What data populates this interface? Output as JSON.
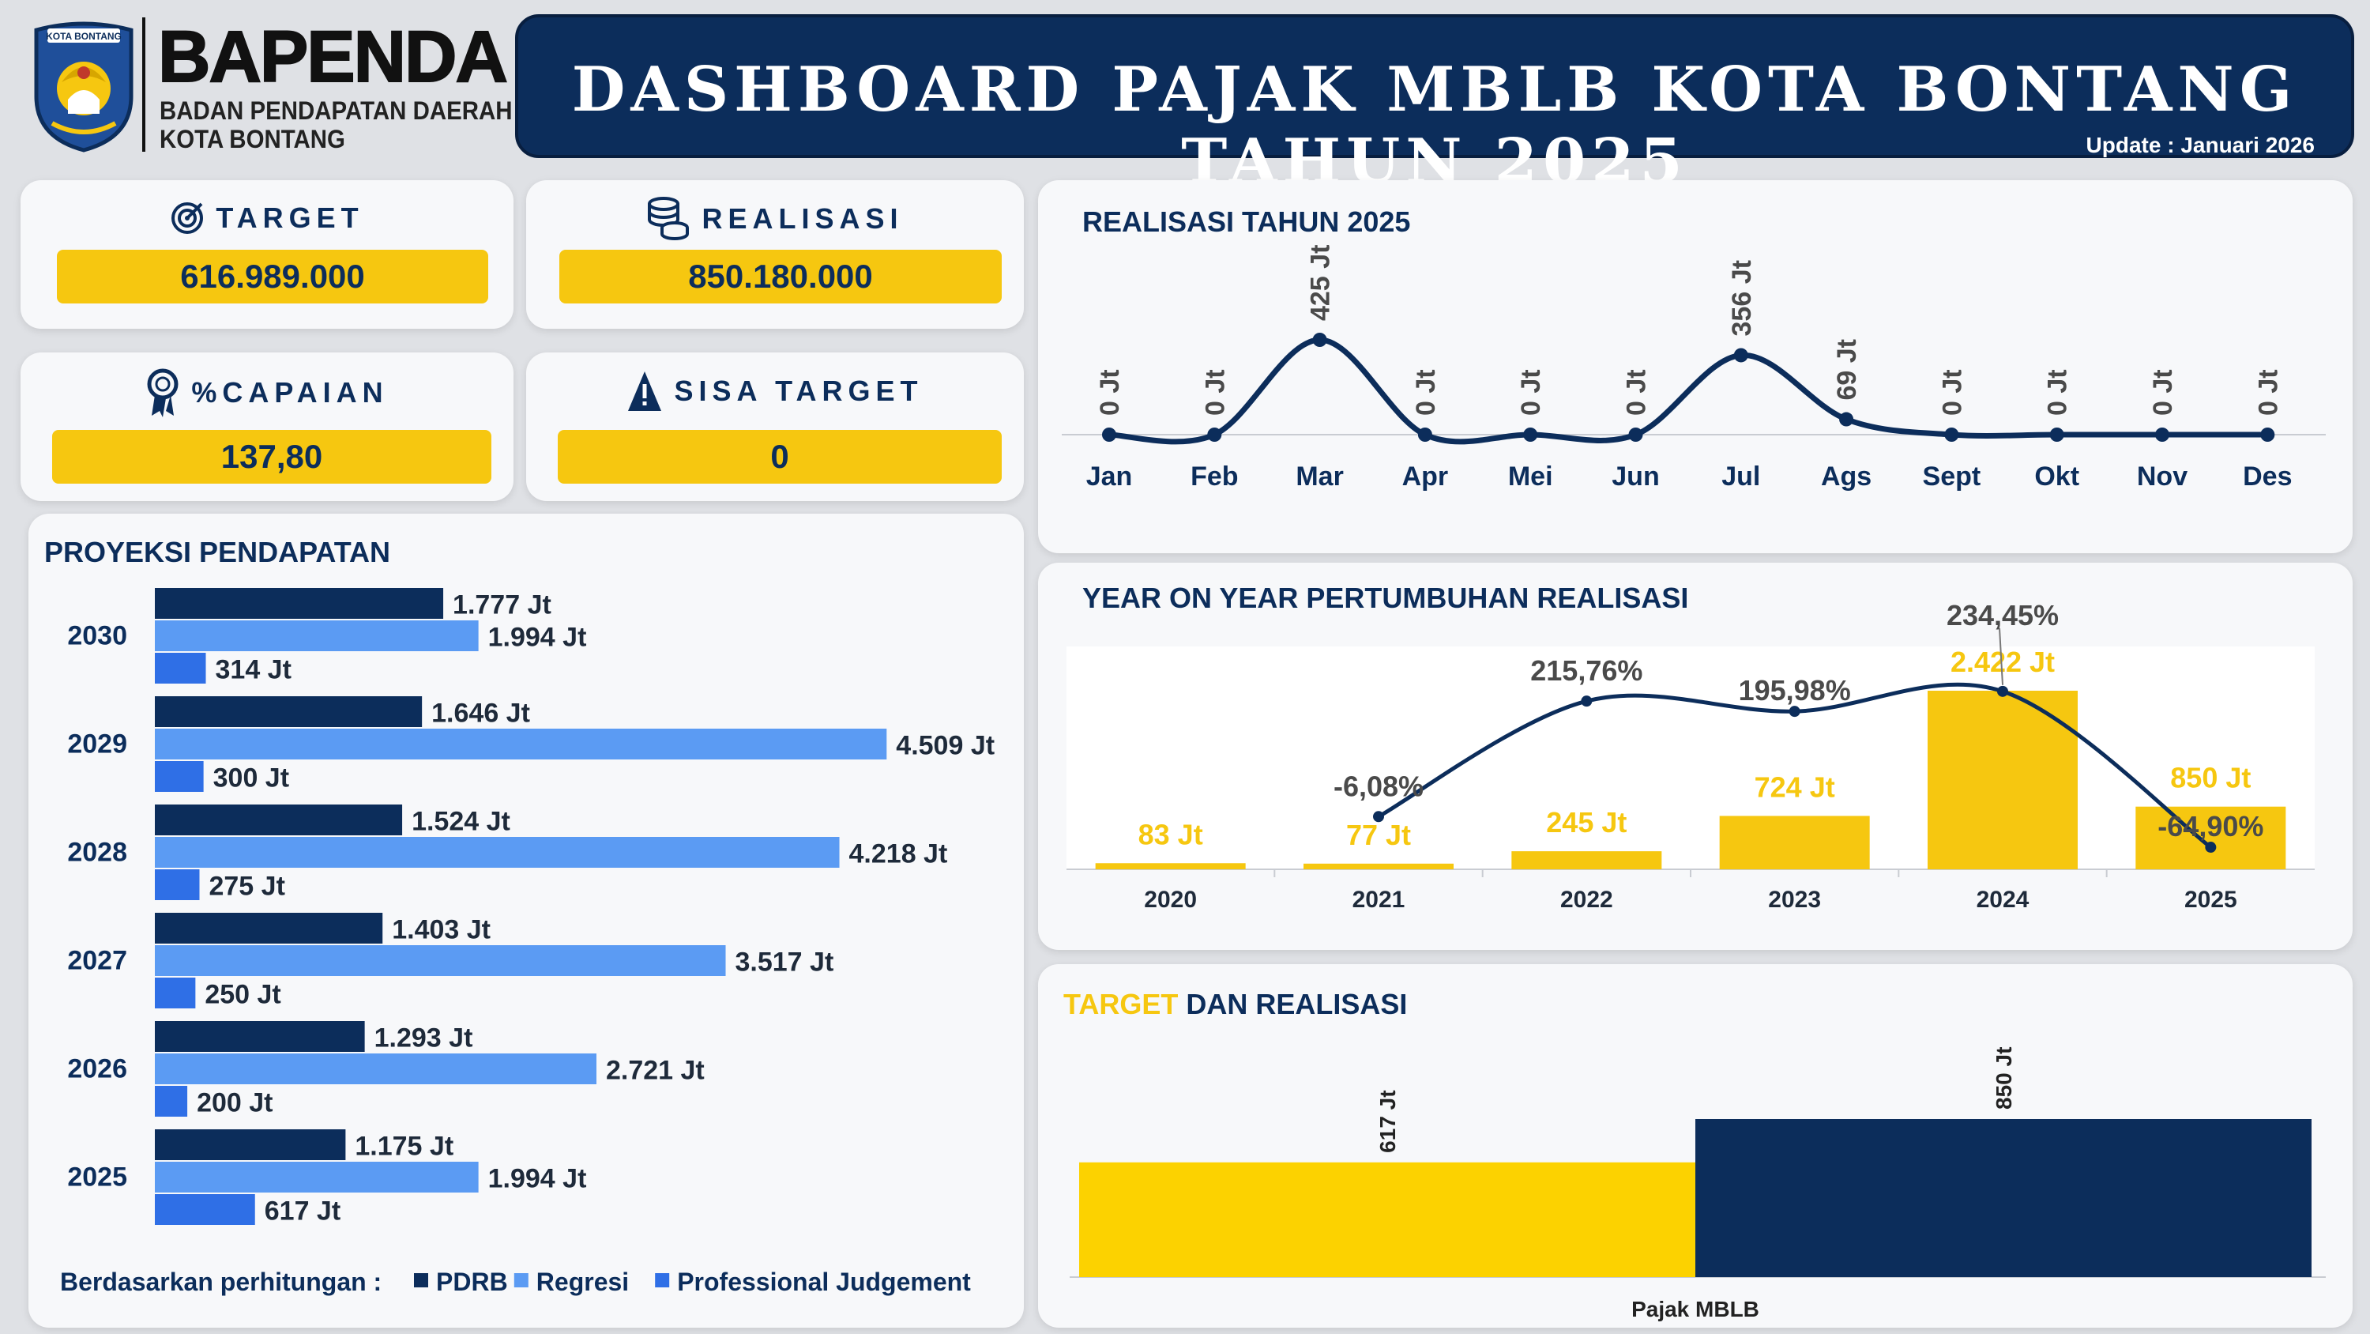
{
  "logo": {
    "emblem_text": "KOTA BONTANG",
    "name": "BAPENDA",
    "line1": "BADAN PENDAPATAN DAERAH",
    "line2": "KOTA BONTANG"
  },
  "header": {
    "title": "DASHBOARD PAJAK MBLB KOTA BONTANG TAHUN 2025",
    "update": "Update : Januari 2026"
  },
  "kpi": {
    "target": {
      "label": "TARGET",
      "value": "616.989.000",
      "icon": "target-icon"
    },
    "realisasi": {
      "label": "REALISASI",
      "value": "850.180.000",
      "icon": "coins-icon"
    },
    "capaian": {
      "label": "%CAPAIAN",
      "value": "137,80",
      "icon": "award-ribbon-icon"
    },
    "sisa": {
      "label": "SISA TARGET",
      "value": "0",
      "icon": "warning-icon"
    }
  },
  "colors": {
    "navy": "#0c2d5b",
    "yellow": "#f6c710",
    "regresi": "#5b9bf3",
    "professional": "#2f6fe6"
  },
  "chart_data": [
    {
      "id": "projection",
      "type": "bar",
      "orientation": "horizontal",
      "title": "PROYEKSI PENDAPATAN",
      "categories": [
        "2030",
        "2029",
        "2028",
        "2027",
        "2026",
        "2025"
      ],
      "series": [
        {
          "name": "PDRB",
          "values": [
            1777,
            1646,
            1524,
            1403,
            1293,
            1175
          ],
          "labels": [
            "1.777 Jt",
            "1.646 Jt",
            "1.524 Jt",
            "1.403 Jt",
            "1.293 Jt",
            "1.175 Jt"
          ]
        },
        {
          "name": "Regresi",
          "values": [
            1994,
            4509,
            4218,
            3517,
            2721,
            1994
          ],
          "labels": [
            "1.994 Jt",
            "4.509 Jt",
            "4.218 Jt",
            "3.517 Jt",
            "2.721 Jt",
            "1.994 Jt"
          ]
        },
        {
          "name": "Professional Judgement",
          "values": [
            314,
            300,
            275,
            250,
            200,
            617
          ],
          "labels": [
            "314 Jt",
            "300 Jt",
            "275 Jt",
            "250 Jt",
            "200 Jt",
            "617 Jt"
          ]
        }
      ],
      "legend_title": "Berdasarkan perhitungan :",
      "xlim": [
        0,
        4600
      ]
    },
    {
      "id": "monthly",
      "type": "line",
      "title": "REALISASI TAHUN 2025",
      "x": [
        "Jan",
        "Feb",
        "Mar",
        "Apr",
        "Mei",
        "Jun",
        "Jul",
        "Ags",
        "Sept",
        "Okt",
        "Nov",
        "Des"
      ],
      "values": [
        0,
        0,
        425,
        0,
        0,
        0,
        356,
        69,
        0,
        0,
        0,
        0
      ],
      "labels": [
        "0 Jt",
        "0 Jt",
        "425 Jt",
        "0 Jt",
        "0 Jt",
        "0 Jt",
        "356 Jt",
        "69 Jt",
        "0 Jt",
        "0 Jt",
        "0 Jt",
        "0 Jt"
      ],
      "ylim": [
        0,
        425
      ]
    },
    {
      "id": "yoy",
      "type": "bar",
      "title": "YEAR ON YEAR PERTUMBUHAN REALISASI",
      "categories": [
        "2020",
        "2021",
        "2022",
        "2023",
        "2024",
        "2025"
      ],
      "bars": {
        "name": "Realisasi",
        "values": [
          83,
          77,
          245,
          724,
          2422,
          850
        ],
        "labels": [
          "83 Jt",
          "77 Jt",
          "245 Jt",
          "724 Jt",
          "2.422 Jt",
          "850 Jt"
        ]
      },
      "line": {
        "name": "Pertumbuhan",
        "categories": [
          "2021",
          "2022",
          "2023",
          "2024",
          "2025"
        ],
        "values": [
          -6.08,
          215.76,
          195.98,
          234.45,
          -64.9
        ],
        "labels": [
          "-6,08%",
          "215,76%",
          "195,98%",
          "234,45%",
          "-64,90%"
        ]
      },
      "ylim": [
        0,
        2422
      ]
    },
    {
      "id": "target_realisasi",
      "type": "bar",
      "title_part1": "TARGET",
      "title_part2": " DAN ",
      "title_part3": "REALISASI",
      "category": "Pajak MBLB",
      "series": [
        {
          "name": "Target",
          "value": 617,
          "label": "617 Jt"
        },
        {
          "name": "Realisasi",
          "value": 850,
          "label": "850 Jt"
        }
      ],
      "ylim": [
        0,
        850
      ]
    }
  ]
}
